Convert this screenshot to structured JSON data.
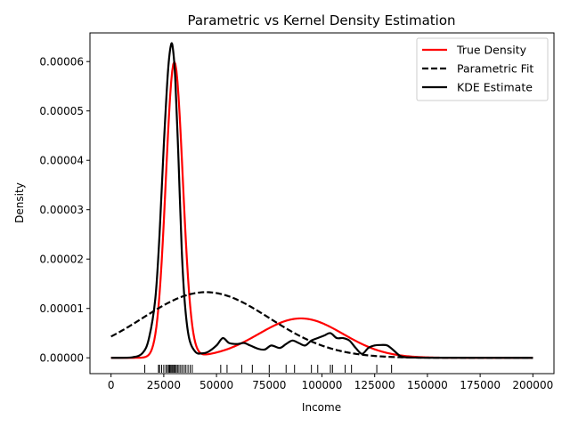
{
  "chart_data": {
    "type": "line",
    "title": "Parametric vs Kernel Density Estimation",
    "xlabel": "Income",
    "ylabel": "Density",
    "xlim": [
      -10000,
      210000
    ],
    "ylim": [
      -3.2e-06,
      6.58e-05
    ],
    "xticks": [
      0,
      25000,
      50000,
      75000,
      100000,
      125000,
      150000,
      175000,
      200000
    ],
    "yticks": [
      "0.00000",
      "0.00001",
      "0.00002",
      "0.00003",
      "0.00004",
      "0.00005",
      "0.00006"
    ],
    "yticks_values": [
      0,
      1e-05,
      2e-05,
      3e-05,
      4e-05,
      5e-05,
      6e-05
    ],
    "grid": false,
    "legend_position": "upper right",
    "series": [
      {
        "name": "True Density",
        "color": "#ff0000",
        "style": "solid",
        "components": [
          {
            "weight": 0.6,
            "mean": 30000,
            "sd": 4000
          },
          {
            "weight": 0.4,
            "mean": 90000,
            "sd": 20000
          }
        ]
      },
      {
        "name": "Parametric Fit",
        "color": "#000000",
        "style": "dashed",
        "components": [
          {
            "weight": 1.0,
            "mean": 45000,
            "sd": 30000
          }
        ]
      },
      {
        "name": "KDE Estimate",
        "color": "#000000",
        "style": "solid",
        "x": [
          0,
          10000,
          15000,
          18000,
          21000,
          23000,
          25000,
          27000,
          28500,
          29500,
          30500,
          32000,
          33500,
          35000,
          37000,
          40000,
          43000,
          46000,
          50000,
          53000,
          56000,
          60000,
          63000,
          66000,
          70000,
          73000,
          76000,
          80000,
          83000,
          86000,
          89000,
          92000,
          95000,
          98000,
          101000,
          104000,
          107000,
          110000,
          113000,
          116000,
          119000,
          122000,
          125000,
          128000,
          131000,
          134000,
          137000,
          140000,
          145000,
          150000,
          200000
        ],
        "y": [
          0,
          1e-07,
          1e-06,
          4e-06,
          1.2e-05,
          2.5e-05,
          4.3e-05,
          5.8e-05,
          6.35e-05,
          6.2e-05,
          5.6e-05,
          4e-05,
          2.2e-05,
          1.1e-05,
          4e-06,
          1.2e-06,
          9e-07,
          1.2e-06,
          2.5e-06,
          4e-06,
          3e-06,
          2.8e-06,
          3e-06,
          2.5e-06,
          1.8e-06,
          1.7e-06,
          2.5e-06,
          2e-06,
          2.8e-06,
          3.5e-06,
          3e-06,
          2.5e-06,
          3.5e-06,
          4e-06,
          4.5e-06,
          5e-06,
          4e-06,
          4e-06,
          3.5e-06,
          2e-06,
          8e-07,
          2e-06,
          2.5e-06,
          2.6e-06,
          2.5e-06,
          1.5e-06,
          4e-07,
          1e-07,
          5e-08,
          2e-08,
          0
        ]
      }
    ],
    "rug": [
      16000,
      22500,
      23000,
      24000,
      25000,
      26000,
      26700,
      27300,
      27800,
      28300,
      28800,
      29300,
      29800,
      30300,
      30900,
      31500,
      32200,
      33000,
      33800,
      34700,
      35500,
      36500,
      37500,
      38500,
      52000,
      55000,
      62000,
      67000,
      75000,
      83000,
      87000,
      95000,
      98000,
      104000,
      105000,
      111000,
      114000,
      126000,
      133000
    ]
  }
}
